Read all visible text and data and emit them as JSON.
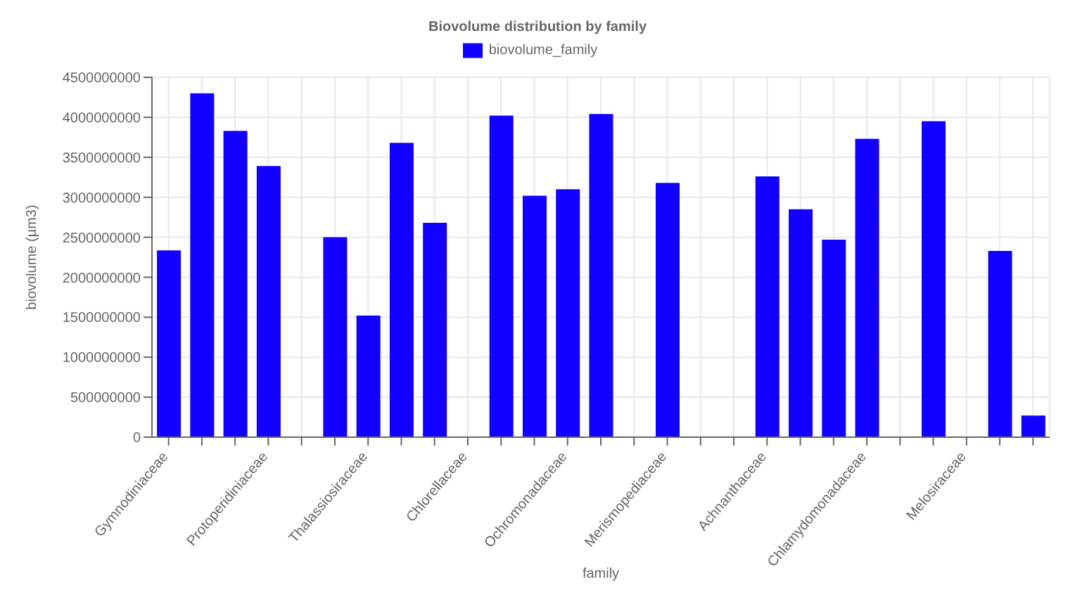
{
  "chart_data": {
    "type": "bar",
    "title": "Biovolume distribution by family",
    "xlabel": "family",
    "ylabel": "biovolume (µm3)",
    "categories": [
      "Gymnodiniaceae",
      null,
      null,
      "Protoperidiniaceae",
      null,
      null,
      "Thalassiosiraceae",
      null,
      null,
      "Chlorellaceae",
      null,
      null,
      "Ochromonadaceae",
      null,
      null,
      "Merismopediaceae",
      null,
      null,
      "Achnanthaceae",
      null,
      null,
      "Chlamydomonadaceae",
      null,
      null,
      "Melosiraceae",
      null,
      null
    ],
    "series": [
      {
        "name": "biovolume_family",
        "color": "#1100ff",
        "values": [
          2335000000,
          4300000000,
          3830000000,
          3390000000,
          null,
          2500000000,
          1520000000,
          3680000000,
          2680000000,
          null,
          4020000000,
          3020000000,
          3100000000,
          4040000000,
          null,
          3180000000,
          null,
          null,
          3260000000,
          2850000000,
          2470000000,
          3730000000,
          null,
          3950000000,
          null,
          2330000000,
          270000000
        ]
      }
    ],
    "ylim": [
      0,
      4500000000
    ],
    "yticks": [
      0,
      500000000,
      1000000000,
      1500000000,
      2000000000,
      2500000000,
      3000000000,
      3500000000,
      4000000000,
      4500000000
    ],
    "grid": true,
    "legend": "top"
  }
}
